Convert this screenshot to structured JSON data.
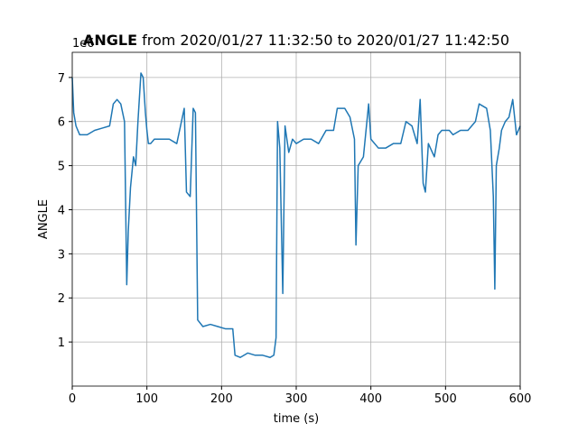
{
  "chart_data": {
    "type": "line",
    "title_bold": "ANGLE",
    "title": "from 2020/01/27 11:32:50 to 2020/01/27 11:42:50",
    "y_offset_label": "1e6",
    "x_label": "time (s)",
    "y_label": "ANGLE",
    "xlim": [
      0,
      600
    ],
    "ylim": [
      0,
      7.57
    ],
    "xticks": [
      0,
      100,
      200,
      300,
      400,
      500,
      600
    ],
    "yticks": [
      1,
      2,
      3,
      4,
      5,
      6,
      7
    ],
    "grid": true,
    "x": [
      0,
      2,
      5,
      10,
      20,
      30,
      40,
      50,
      55,
      60,
      65,
      70,
      73,
      75,
      78,
      82,
      85,
      88,
      92,
      95,
      98,
      100,
      102,
      105,
      110,
      120,
      130,
      140,
      145,
      150,
      153,
      158,
      162,
      165,
      168,
      175,
      185,
      195,
      205,
      215,
      218,
      225,
      235,
      245,
      255,
      265,
      270,
      273,
      275,
      278,
      282,
      285,
      290,
      295,
      300,
      310,
      320,
      330,
      340,
      350,
      355,
      365,
      372,
      378,
      380,
      383,
      390,
      397,
      400,
      410,
      420,
      430,
      440,
      447,
      455,
      462,
      466,
      470,
      473,
      477,
      485,
      490,
      495,
      505,
      510,
      520,
      530,
      540,
      545,
      555,
      560,
      564,
      566,
      568,
      572,
      575,
      580,
      585,
      590,
      595,
      600
    ],
    "series": [
      {
        "name": "ANGLE",
        "color": "#1f77b4",
        "values": [
          7.0,
          6.2,
          5.9,
          5.7,
          5.7,
          5.8,
          5.85,
          5.9,
          6.4,
          6.5,
          6.4,
          6.0,
          2.3,
          3.5,
          4.5,
          5.2,
          5.0,
          6.0,
          7.1,
          7.0,
          6.2,
          5.8,
          5.5,
          5.5,
          5.6,
          5.6,
          5.6,
          5.5,
          5.9,
          6.3,
          4.4,
          4.3,
          6.3,
          6.2,
          1.5,
          1.35,
          1.4,
          1.35,
          1.3,
          1.3,
          0.7,
          0.65,
          0.75,
          0.7,
          0.7,
          0.65,
          0.7,
          1.1,
          6.0,
          5.4,
          2.1,
          5.9,
          5.3,
          5.6,
          5.5,
          5.6,
          5.6,
          5.5,
          5.8,
          5.8,
          6.3,
          6.3,
          6.1,
          5.6,
          3.2,
          5.0,
          5.2,
          6.4,
          5.6,
          5.4,
          5.4,
          5.5,
          5.5,
          6.0,
          5.9,
          5.5,
          6.5,
          4.6,
          4.4,
          5.5,
          5.2,
          5.7,
          5.8,
          5.8,
          5.7,
          5.8,
          5.8,
          6.0,
          6.4,
          6.3,
          5.8,
          4.3,
          2.2,
          5.0,
          5.4,
          5.8,
          6.0,
          6.1,
          6.5,
          5.7,
          5.9
        ]
      }
    ]
  }
}
